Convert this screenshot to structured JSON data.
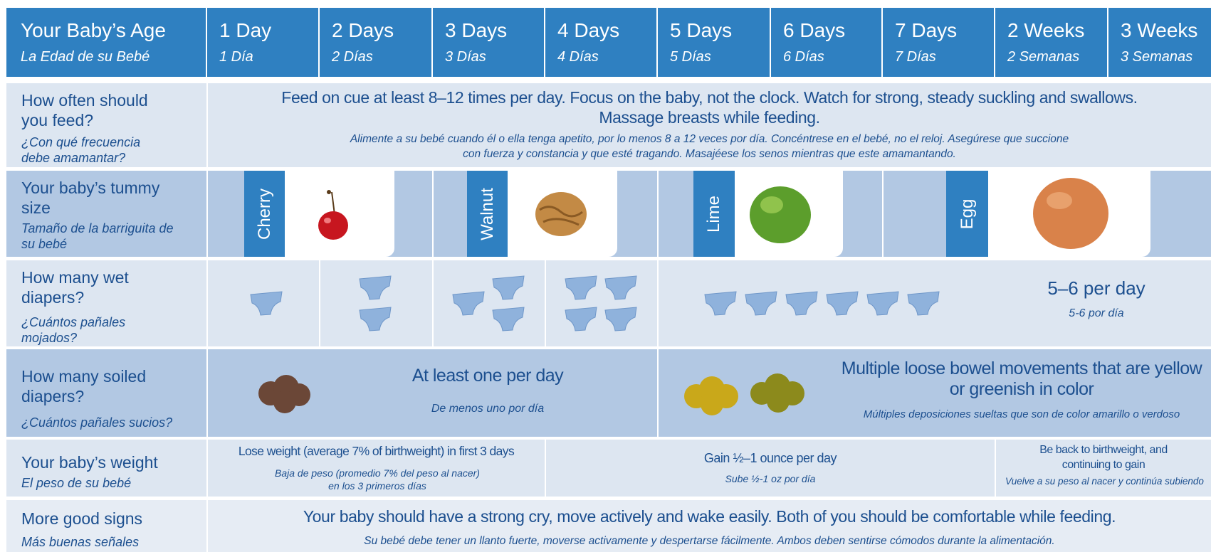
{
  "header": {
    "label": "Your Baby’s Age",
    "label_es": "La Edad de su Bebé",
    "columns": [
      {
        "en": "1 Day",
        "es": "1 Día"
      },
      {
        "en": "2 Days",
        "es": "2 Días"
      },
      {
        "en": "3 Days",
        "es": "3 Días"
      },
      {
        "en": "4 Days",
        "es": "4 Días"
      },
      {
        "en": "5 Days",
        "es": "5 Días"
      },
      {
        "en": "6 Days",
        "es": "6 Días"
      },
      {
        "en": "7 Days",
        "es": "7 Días"
      },
      {
        "en": "2 Weeks",
        "es": "2 Semanas"
      },
      {
        "en": "3 Weeks",
        "es": "3 Semanas"
      }
    ]
  },
  "feed": {
    "label": "How often should you feed?",
    "label_es": "¿Con qué frecuencia debe amamantar?",
    "text": "Feed on cue at least 8–12 times per day. Focus on the baby, not the clock. Watch for strong, steady suckling and swallows. Massage breasts while feeding.",
    "text_es": "Alimente a su bebé cuando él o ella tenga apetito, por lo menos 8 a 12 veces por día. Concéntrese en el bebé, no el reloj. Asegúrese que succione con fuerza y constancia y que esté tragando. Masajéese los senos mientras que este amamantando."
  },
  "tummy": {
    "label": "Your baby’s tummy size",
    "label_es": "Tamaño de la barriguita de su bebé",
    "sizes": [
      "Cherry",
      "Walnut",
      "Lime",
      "Egg"
    ]
  },
  "wet": {
    "label": "How many wet diapers?",
    "label_es": "¿Cuántos pañales mojados?",
    "diaper_counts": [
      1,
      2,
      3,
      4,
      6
    ],
    "text": "5–6 per day",
    "text_es": "5-6 por día"
  },
  "soiled": {
    "label": "How many soiled diapers?",
    "label_es": "¿Cuántos pañales sucios?",
    "early": "At least one per day",
    "early_es": "De menos uno por día",
    "later": "Multiple loose bowel movements that are yellow or greenish in color",
    "later_es": "Múltiples deposiciones sueltas que son de color amarillo o verdoso"
  },
  "weight": {
    "label": "Your baby’s weight",
    "label_es": "El peso de su bebé",
    "lose": "Lose weight (average 7% of birthweight) in first 3 days",
    "lose_es": "Baja de peso (promedio 7% del peso al nacer) en los 3 primeros días",
    "gain": "Gain ½–1 ounce per day",
    "gain_es": "Sube ½-1 oz por día",
    "back": "Be back to birthweight, and continuing to gain",
    "back_es": "Vuelve a su peso al nacer y continúa subiendo"
  },
  "signs": {
    "label": "More good signs",
    "label_es": "Más buenas señales",
    "text": "Your baby should have a strong cry, move actively and wake easily.  Both of you should be comfortable while feeding.",
    "text_es": "Su bebé debe tener un llanto fuerte, moverse activamente y despertarse fácilmente. Ambos deben sentirse cómodos durante la alimentación."
  }
}
